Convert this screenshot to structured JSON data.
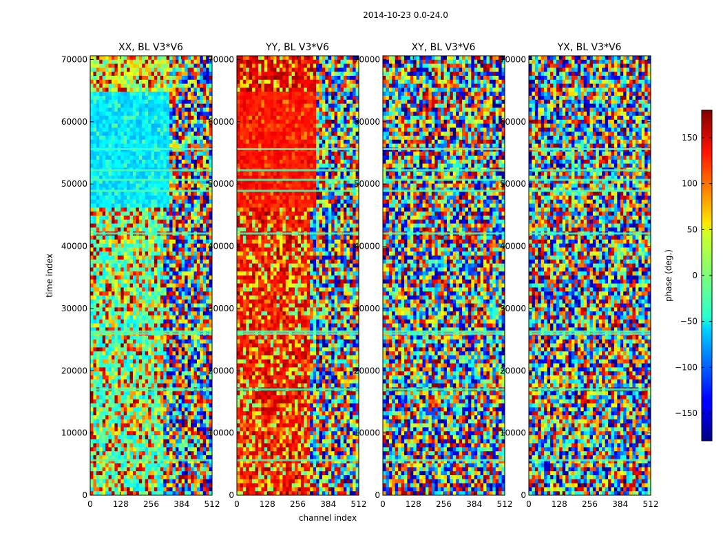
{
  "chart_data": {
    "type": "heatmap",
    "suptitle": "2014-10-23 0.0-24.0",
    "xlabel": "channel index",
    "ylabel": "time index",
    "xlim": [
      0,
      512
    ],
    "ylim": [
      0,
      70600
    ],
    "xticks": [
      0,
      128,
      256,
      384,
      512
    ],
    "yticks": [
      0,
      10000,
      20000,
      30000,
      40000,
      50000,
      60000,
      70000
    ],
    "colormap": "jet",
    "panels": [
      {
        "id": "xx",
        "title": "XX, BL V3*V6"
      },
      {
        "id": "yy",
        "title": "YY, BL V3*V6"
      },
      {
        "id": "xy",
        "title": "XY, BL V3*V6"
      },
      {
        "id": "yx",
        "title": "YX, BL V3*V6"
      }
    ],
    "colorbar": {
      "label": "phase (deg.)",
      "range": [
        -180,
        180
      ],
      "ticks": [
        150,
        100,
        50,
        0,
        -50,
        -100,
        -150
      ],
      "tick_labels": [
        "150",
        "100",
        "50",
        "0",
        "−50",
        "−100",
        "−150"
      ]
    }
  }
}
